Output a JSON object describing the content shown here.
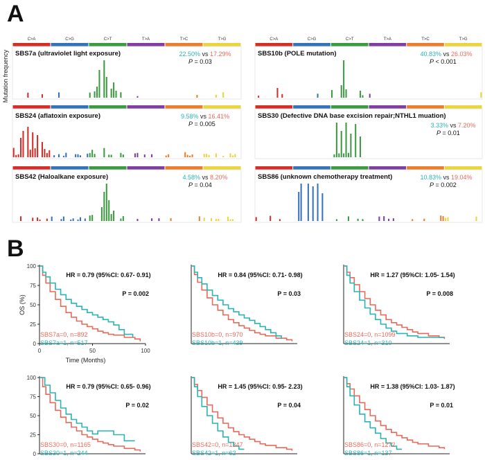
{
  "panel_labels": {
    "a": "A",
    "b": "B"
  },
  "panel_a": {
    "ylabel": "Mutation frequency",
    "contexts": [
      "C>A",
      "C>G",
      "C>T",
      "T>A",
      "T>C",
      "T>G"
    ],
    "colors": [
      "#d42e28",
      "#3573b9",
      "#3c9a41",
      "#7e3fa0",
      "#ec7d2c",
      "#ead63b"
    ],
    "pct_colors": {
      "group1": "#2ab3b5",
      "group2": "#e8695a",
      "vs": "#222222"
    },
    "p_prefix": "P",
    "signatures": [
      {
        "name": "SBS7a (ultraviolet light exposure)",
        "pct1": "22.50%",
        "vs": "vs",
        "pct2": "17.29%",
        "p_text": "= 0.03"
      },
      {
        "name": "SBS10b (POLE mutation)",
        "pct1": "40.83%",
        "vs": "vs",
        "pct2": "26.03%",
        "p_text": "< 0.001"
      },
      {
        "name": "SBS24 (aflatoxin exposure)",
        "pct1": "9.58%",
        "vs": "vs",
        "pct2": "16.41%",
        "p_text": "= 0.005"
      },
      {
        "name": "SBS30 (Defective DNA base excision repair;NTHL1 muation)",
        "pct1": "3.33%",
        "vs": "vs",
        "pct2": "7.20%",
        "p_text": "= 0.01"
      },
      {
        "name": "SBS42 (Haloalkane exposure)",
        "pct1": "4.58%",
        "vs": "vs",
        "pct2": "8.20%",
        "p_text": "= 0.04"
      },
      {
        "name": "SBS86 (unknown chemotherapy treatment)",
        "pct1": "10.83%",
        "vs": "vs",
        "pct2": "19.04%",
        "p_text": "= 0.002"
      }
    ]
  },
  "chart_data": [
    {
      "type": "line",
      "title": "SBS7a",
      "x_axis_label": "Time (Months)",
      "y_axis_label": "OS (%)",
      "x_ticks": [
        "0",
        "50",
        "100"
      ],
      "y_ticks": [
        "0",
        "25",
        "50",
        "75",
        "100"
      ],
      "xlim": [
        0,
        100
      ],
      "ylim": [
        0,
        100
      ],
      "hr_text": "HR = 0.79 (95%CI: 0.67- 0.91)",
      "p_text": "P = 0.002",
      "series": [
        {
          "name": "SBS7a=0, n=892",
          "color": "#e8695a",
          "x": [
            0,
            3,
            6,
            10,
            15,
            20,
            25,
            30,
            35,
            40,
            45,
            50,
            55,
            60,
            65,
            70,
            80,
            90,
            95
          ],
          "y": [
            100,
            88,
            78,
            67,
            57,
            48,
            40,
            34,
            29,
            25,
            22,
            19,
            16,
            14,
            12,
            11,
            8,
            6,
            3
          ]
        },
        {
          "name": "SBS7a=1, n=517",
          "color": "#2ab3b5",
          "x": [
            0,
            3,
            6,
            10,
            15,
            20,
            25,
            30,
            35,
            40,
            45,
            50,
            55,
            60,
            65,
            70,
            75,
            80,
            88
          ],
          "y": [
            100,
            92,
            86,
            78,
            70,
            63,
            57,
            52,
            48,
            44,
            40,
            37,
            34,
            31,
            28,
            24,
            18,
            12,
            8
          ]
        }
      ]
    },
    {
      "type": "line",
      "title": "SBS10b",
      "x_axis_label": "",
      "y_axis_label": "",
      "x_ticks": [],
      "y_ticks": [],
      "xlim": [
        0,
        100
      ],
      "ylim": [
        0,
        100
      ],
      "hr_text": "HR = 0.84 (95%CI: 0.71- 0.98)",
      "p_text": "P = 0.03",
      "series": [
        {
          "name": "SBS10b=0, n=970",
          "color": "#e8695a",
          "x": [
            0,
            3,
            6,
            10,
            15,
            20,
            25,
            30,
            35,
            40,
            45,
            50,
            55,
            60,
            65,
            70,
            80,
            90,
            95
          ],
          "y": [
            100,
            89,
            79,
            69,
            59,
            50,
            43,
            37,
            31,
            27,
            23,
            20,
            17,
            14,
            12,
            10,
            7,
            5,
            3
          ]
        },
        {
          "name": "SBS10b=1, n=439",
          "color": "#2ab3b5",
          "x": [
            0,
            3,
            6,
            10,
            15,
            20,
            25,
            30,
            35,
            40,
            45,
            50,
            55,
            60,
            65,
            70,
            75,
            80,
            85
          ],
          "y": [
            100,
            92,
            85,
            77,
            69,
            62,
            56,
            50,
            45,
            41,
            37,
            33,
            30,
            26,
            22,
            18,
            14,
            10,
            6
          ]
        }
      ]
    },
    {
      "type": "line",
      "title": "SBS24",
      "x_axis_label": "",
      "y_axis_label": "",
      "x_ticks": [],
      "y_ticks": [],
      "xlim": [
        0,
        100
      ],
      "ylim": [
        0,
        100
      ],
      "hr_text": "HR = 1.27 (95%CI: 1.05- 1.54)",
      "p_text": "P = 0.008",
      "series": [
        {
          "name": "SBS24=0, n=1099",
          "color": "#e8695a",
          "x": [
            0,
            3,
            6,
            10,
            15,
            20,
            25,
            30,
            35,
            40,
            45,
            50,
            55,
            60,
            65,
            70,
            80,
            90,
            95
          ],
          "y": [
            100,
            92,
            85,
            76,
            67,
            58,
            50,
            43,
            37,
            31,
            27,
            24,
            21,
            18,
            15,
            13,
            10,
            8,
            6
          ]
        },
        {
          "name": "SBS24=1, n=310",
          "color": "#2ab3b5",
          "x": [
            0,
            3,
            6,
            10,
            15,
            20,
            25,
            30,
            35,
            40,
            45,
            50,
            60,
            70,
            80,
            95
          ],
          "y": [
            100,
            88,
            78,
            67,
            56,
            46,
            38,
            31,
            25,
            20,
            16,
            13,
            10,
            8,
            8,
            8
          ]
        }
      ]
    },
    {
      "type": "line",
      "title": "SBS30",
      "x_axis_label": "",
      "y_axis_label": "",
      "x_ticks": [],
      "y_ticks": [
        "0",
        "25",
        "50",
        "75",
        "100"
      ],
      "xlim": [
        0,
        100
      ],
      "ylim": [
        0,
        100
      ],
      "hr_text": "HR = 0.79 (95%CI: 0.65- 0.96)",
      "p_text": "P = 0.02",
      "series": [
        {
          "name": "SBS30=0, n=1165",
          "color": "#e8695a",
          "x": [
            0,
            3,
            6,
            10,
            15,
            20,
            25,
            30,
            35,
            40,
            45,
            50,
            55,
            60,
            65,
            70,
            80,
            90,
            95
          ],
          "y": [
            100,
            88,
            78,
            67,
            57,
            48,
            41,
            35,
            30,
            25,
            22,
            19,
            16,
            14,
            12,
            10,
            7,
            5,
            3
          ]
        },
        {
          "name": "SBS30=1, n=244",
          "color": "#2ab3b5",
          "x": [
            0,
            5,
            10,
            15,
            20,
            25,
            30,
            35,
            40,
            45,
            50,
            55,
            60,
            70,
            80,
            90
          ],
          "y": [
            100,
            90,
            80,
            70,
            60,
            52,
            45,
            40,
            35,
            30,
            26,
            30,
            30,
            25,
            17,
            17
          ]
        }
      ]
    },
    {
      "type": "line",
      "title": "SBS42",
      "x_axis_label": "",
      "y_axis_label": "",
      "x_ticks": [],
      "y_ticks": [],
      "xlim": [
        0,
        100
      ],
      "ylim": [
        0,
        100
      ],
      "hr_text": "HR = 1.45 (95%CI: 0.95- 2.23)",
      "p_text": "P = 0.04",
      "series": [
        {
          "name": "SBS42=0, n=1347",
          "color": "#e8695a",
          "x": [
            0,
            3,
            6,
            10,
            15,
            20,
            25,
            30,
            35,
            40,
            45,
            50,
            55,
            60,
            65,
            70,
            80,
            90,
            95
          ],
          "y": [
            100,
            91,
            83,
            74,
            64,
            55,
            47,
            40,
            34,
            29,
            25,
            22,
            19,
            16,
            13,
            11,
            8,
            6,
            4
          ]
        },
        {
          "name": "SBS42=1, n=62",
          "color": "#2ab3b5",
          "x": [
            0,
            3,
            6,
            10,
            15,
            20,
            25,
            30,
            35,
            40,
            45,
            50
          ],
          "y": [
            100,
            88,
            75,
            62,
            50,
            40,
            30,
            22,
            15,
            10,
            6,
            6
          ]
        }
      ]
    },
    {
      "type": "line",
      "title": "SBS86",
      "x_axis_label": "",
      "y_axis_label": "",
      "x_ticks": [],
      "y_ticks": [],
      "xlim": [
        0,
        100
      ],
      "ylim": [
        0,
        100
      ],
      "hr_text": "HR = 1.38 (95%CI: 1.03- 1.87)",
      "p_text": "P = 0.01",
      "series": [
        {
          "name": "SBS86=0, n=1272",
          "color": "#e8695a",
          "x": [
            0,
            3,
            6,
            10,
            15,
            20,
            25,
            30,
            35,
            40,
            45,
            50,
            55,
            60,
            65,
            70,
            80,
            90,
            95
          ],
          "y": [
            100,
            92,
            85,
            76,
            67,
            58,
            50,
            43,
            37,
            32,
            28,
            24,
            21,
            18,
            15,
            13,
            10,
            8,
            6
          ]
        },
        {
          "name": "SBS86=1, n=137",
          "color": "#2ab3b5",
          "x": [
            0,
            3,
            6,
            10,
            15,
            20,
            25,
            30,
            35,
            40,
            45,
            50,
            55
          ],
          "y": [
            100,
            88,
            76,
            64,
            52,
            42,
            34,
            27,
            20,
            14,
            10,
            6,
            6
          ]
        }
      ]
    }
  ]
}
